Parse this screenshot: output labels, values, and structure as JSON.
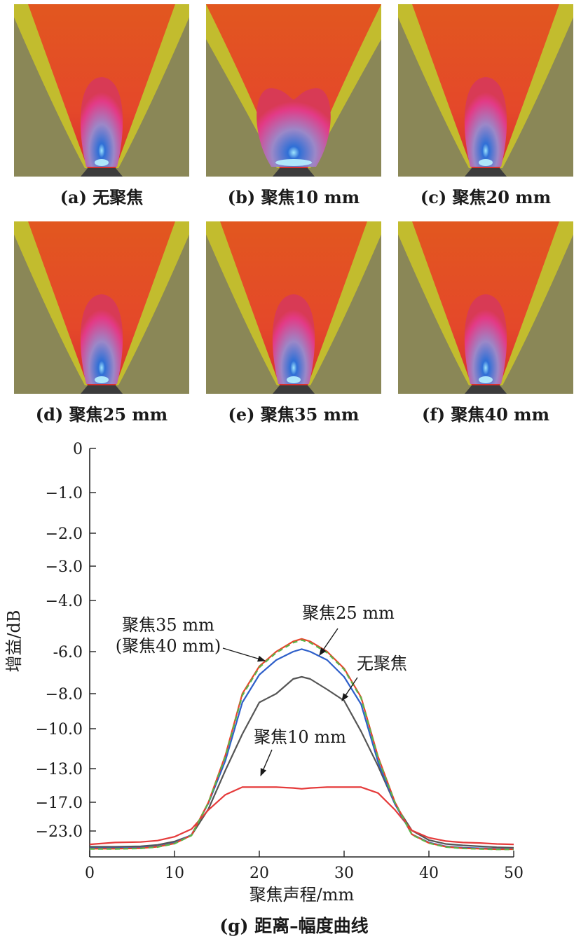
{
  "panels": [
    {
      "caption": "(a) 无聚焦",
      "lobe": "normal"
    },
    {
      "caption": "(b) 聚焦10 mm",
      "lobe": "split"
    },
    {
      "caption": "(c) 聚焦20 mm",
      "lobe": "normal"
    },
    {
      "caption": "(d) 聚焦25 mm",
      "lobe": "normal"
    },
    {
      "caption": "(e) 聚焦35 mm",
      "lobe": "normal"
    },
    {
      "caption": "(f) 聚焦40 mm",
      "lobe": "normal"
    }
  ],
  "colors": {
    "field_background": "#8a8757",
    "field_orange": "#e2571f",
    "field_yellow": "#c8c22a",
    "lobe_pink": "#e33a86",
    "lobe_violet": "#9b88c8",
    "lobe_blue": "#2f6fd6",
    "transducer": "#3c3c3c"
  },
  "chart_data": {
    "type": "line",
    "caption": "(g) 距离–幅度曲线",
    "xlabel": "聚焦声程/mm",
    "ylabel": "增益/dB",
    "xlim": [
      0,
      50
    ],
    "xticks": [
      "0",
      "10",
      "20",
      "30",
      "40",
      "50"
    ],
    "yticks": [
      "0",
      "−1.0",
      "−2.0",
      "−3.0",
      "−4.0",
      "-6.0",
      "−8.0",
      "−10.0",
      "−13.0",
      "−17.0",
      "−23.0"
    ],
    "series": [
      {
        "name": "无聚焦",
        "color": "#555555",
        "x": [
          0,
          3,
          6,
          8,
          10,
          12,
          14,
          16,
          18,
          20,
          22,
          24,
          25,
          26,
          28,
          30,
          32,
          34,
          36,
          38,
          40,
          42,
          44,
          46,
          48,
          50
        ],
        "y": [
          -26.3,
          -26.3,
          -26.2,
          -25.9,
          -25.2,
          -23.9,
          -18.4,
          -13.2,
          -10.4,
          -8.5,
          -8.0,
          -7.3,
          -7.2,
          -7.3,
          -7.8,
          -8.4,
          -10.2,
          -12.8,
          -17.4,
          -22.9,
          -24.9,
          -25.7,
          -26.0,
          -26.2,
          -26.4,
          -26.5
        ]
      },
      {
        "name": "聚焦10 mm",
        "color": "#e53a3a",
        "x": [
          0,
          3,
          6,
          8,
          10,
          12,
          14,
          16,
          18,
          20,
          22,
          24,
          25,
          26,
          28,
          30,
          32,
          34,
          36,
          38,
          40,
          42,
          44,
          46,
          48,
          50
        ],
        "y": [
          -25.8,
          -25.4,
          -25.3,
          -25.0,
          -24.2,
          -22.6,
          -18.6,
          -16.1,
          -15.2,
          -15.2,
          -15.2,
          -15.3,
          -15.4,
          -15.3,
          -15.2,
          -15.2,
          -15.2,
          -15.9,
          -18.6,
          -22.9,
          -24.4,
          -25.1,
          -25.4,
          -25.5,
          -25.7,
          -25.8
        ]
      },
      {
        "name": "聚焦25 mm",
        "color": "#2e5fc9",
        "x": [
          0,
          3,
          6,
          8,
          10,
          12,
          14,
          16,
          18,
          20,
          22,
          24,
          25,
          26,
          28,
          30,
          32,
          34,
          36,
          38,
          40,
          42,
          44,
          46,
          48,
          50
        ],
        "y": [
          -26.6,
          -26.6,
          -26.5,
          -26.2,
          -25.5,
          -23.8,
          -17.2,
          -12.4,
          -8.5,
          -7.1,
          -6.4,
          -6.0,
          -5.9,
          -6.0,
          -6.4,
          -7.2,
          -8.6,
          -12.5,
          -17.4,
          -23.7,
          -25.4,
          -26.2,
          -26.5,
          -26.6,
          -26.7,
          -26.7
        ]
      },
      {
        "name": "聚焦35 mm（聚焦40 mm）",
        "color": "#e8442a",
        "x": [
          0,
          3,
          6,
          8,
          10,
          12,
          14,
          16,
          18,
          20,
          22,
          24,
          25,
          26,
          28,
          30,
          32,
          34,
          36,
          38,
          40,
          42,
          44,
          46,
          48,
          50
        ],
        "y": [
          -26.7,
          -26.7,
          -26.6,
          -26.3,
          -25.6,
          -23.9,
          -17.0,
          -12.0,
          -8.0,
          -6.7,
          -6.0,
          -5.6,
          -5.5,
          -5.6,
          -6.0,
          -6.8,
          -8.2,
          -12.1,
          -17.0,
          -23.7,
          -25.5,
          -26.3,
          -26.6,
          -26.7,
          -26.8,
          -26.8
        ]
      },
      {
        "name": "",
        "color": "#5bb548",
        "dashed": true,
        "x": [
          0,
          3,
          6,
          8,
          10,
          12,
          14,
          16,
          18,
          20,
          22,
          24,
          25,
          26,
          28,
          30,
          32,
          34,
          36,
          38,
          40,
          42,
          44,
          46,
          48,
          50
        ],
        "y": [
          -26.75,
          -26.75,
          -26.65,
          -26.35,
          -25.65,
          -23.95,
          -17.1,
          -12.1,
          -8.1,
          -6.75,
          -6.05,
          -5.65,
          -5.55,
          -5.65,
          -6.05,
          -6.85,
          -8.25,
          -12.2,
          -17.1,
          -23.8,
          -25.55,
          -26.35,
          -26.65,
          -26.75,
          -26.85,
          -26.85
        ]
      }
    ],
    "annotations": [
      {
        "lines": [
          "聚焦35 mm",
          "(聚焦40 mm)"
        ],
        "series": "聚焦35 mm（聚焦40 mm）"
      },
      {
        "lines": [
          "聚焦25 mm"
        ],
        "series": "聚焦25 mm"
      },
      {
        "lines": [
          "无聚焦"
        ],
        "series": "无聚焦"
      },
      {
        "lines": [
          "聚焦10 mm"
        ],
        "series": "聚焦10 mm"
      }
    ]
  }
}
